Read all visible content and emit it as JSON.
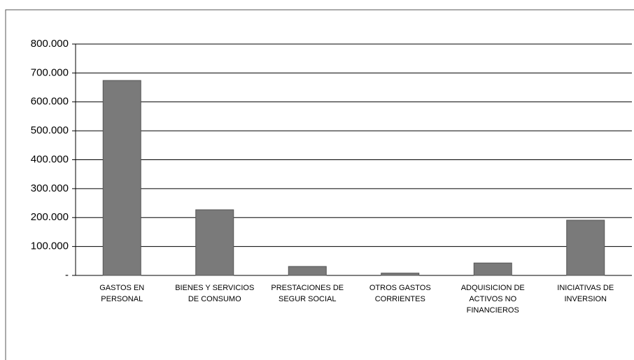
{
  "chart_data": {
    "type": "bar",
    "categories": [
      "GASTOS EN\nPERSONAL",
      "BIENES Y SERVICIOS\nDE CONSUMO",
      "PRESTACIONES DE\nSEGUR SOCIAL",
      "OTROS GASTOS\nCORRIENTES",
      "ADQUISICION DE\nACTIVOS NO\nFINANCIEROS",
      "INICIATIVAS DE\nINVERSION"
    ],
    "values": [
      674000,
      227000,
      31000,
      8000,
      43000,
      191000
    ],
    "color": "#7a7a7a",
    "ylim": [
      0,
      800000
    ],
    "yticks": [
      {
        "value": 0,
        "label": "-"
      },
      {
        "value": 100000,
        "label": "100.000"
      },
      {
        "value": 200000,
        "label": "200.000"
      },
      {
        "value": 300000,
        "label": "300.000"
      },
      {
        "value": 400000,
        "label": "400.000"
      },
      {
        "value": 500000,
        "label": "500.000"
      },
      {
        "value": 600000,
        "label": "600.000"
      },
      {
        "value": 700000,
        "label": "700.000"
      },
      {
        "value": 800000,
        "label": "800.000"
      }
    ],
    "grid": true
  }
}
